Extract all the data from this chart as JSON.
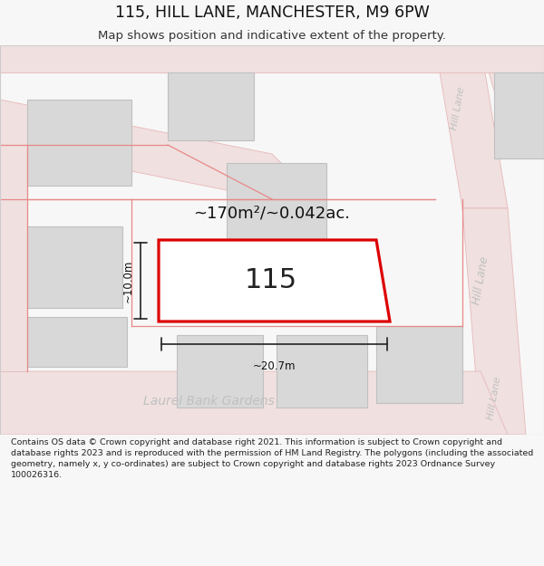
{
  "title": "115, HILL LANE, MANCHESTER, M9 6PW",
  "subtitle": "Map shows position and indicative extent of the property.",
  "footer_text": "Contains OS data © Crown copyright and database right 2021. This information is subject to Crown copyright and database rights 2023 and is reproduced with the permission of HM Land Registry. The polygons (including the associated geometry, namely x, y co-ordinates) are subject to Crown copyright and database rights 2023 Ordnance Survey 100026316.",
  "bg_color": "#f7f7f7",
  "property_label": "115",
  "area_label": "~170m²/~0.042ac.",
  "width_label": "~20.7m",
  "height_label": "~10.0m",
  "road_color": "#f0e0e0",
  "road_edge_color": "#e8b8b8",
  "building_fill": "#d8d8d8",
  "building_border": "#c0c0c0",
  "property_fill": "#ffffff",
  "property_border": "#dd0000",
  "dim_color": "#222222",
  "street_label_color": "#bbbbbb",
  "red_line_color": "#e88888"
}
